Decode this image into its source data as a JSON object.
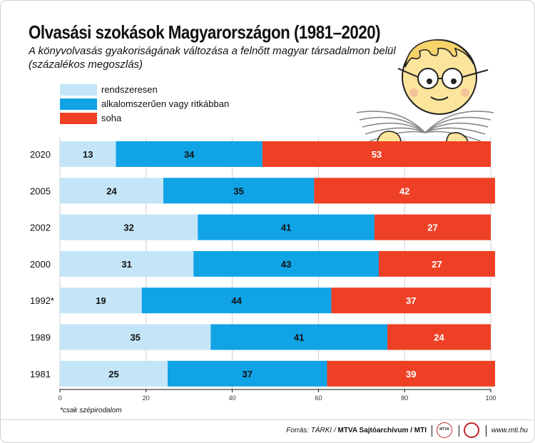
{
  "title": "Olvasási szokások Magyarországon (1981–2020)",
  "subtitle": "A könyvolvasás gyakoriságának változása a felnőtt magyar társadalmon belül (százalékos megoszlás)",
  "footnote": "*csak szépirodalom",
  "footer": {
    "source_prefix": "Forrás: TÁRKI / ",
    "source_bold": "MTVA Sajtóarchívum / MTI",
    "website": "www.mti.hu",
    "logo_left_text": "MTVA"
  },
  "colors": {
    "rendszeresen": "#c3e5f7",
    "alkalomszeruen": "#10a3e6",
    "soha": "#ee4024"
  },
  "chart_data": {
    "type": "bar",
    "orientation": "horizontal",
    "stacked": true,
    "categories": [
      "2020",
      "2005",
      "2002",
      "2000",
      "1992*",
      "1989",
      "1981"
    ],
    "series": [
      {
        "name": "rendszeresen",
        "color": "#c3e5f7",
        "values": [
          13,
          24,
          32,
          31,
          19,
          35,
          25
        ]
      },
      {
        "name": "alkalomszerűen vagy ritkábban",
        "color": "#10a3e6",
        "values": [
          34,
          35,
          41,
          43,
          44,
          41,
          37
        ]
      },
      {
        "name": "soha",
        "color": "#ee4024",
        "values": [
          53,
          42,
          27,
          27,
          37,
          24,
          39
        ]
      }
    ],
    "xlim": [
      0,
      100
    ],
    "xticks": [
      0,
      20,
      40,
      60,
      80,
      100
    ],
    "grid": true,
    "legend": "top-left"
  }
}
